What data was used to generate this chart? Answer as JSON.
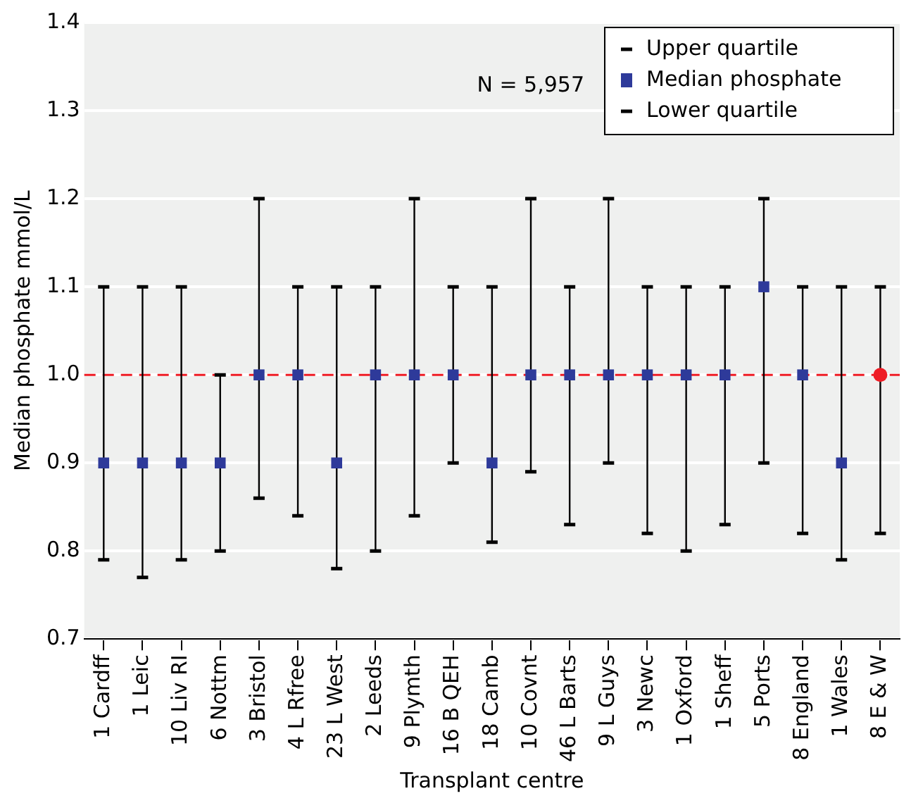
{
  "chart_data": {
    "type": "scatter",
    "xlabel": "Transplant centre",
    "ylabel": "Median phosphate mmol/L",
    "categories": [
      "1 Cardff",
      "1 Leic",
      "10 Liv RI",
      "6 Nottm",
      "3 Bristol",
      "4 L Rfree",
      "23 L West",
      "2 Leeds",
      "9 Plymth",
      "16 B QEH",
      "18 Camb",
      "10 Covnt",
      "46 L Barts",
      "9 L Guys",
      "3 Newc",
      "1 Oxford",
      "1 Sheff",
      "5 Ports",
      "8 England",
      "1 Wales",
      "8 E & W"
    ],
    "series": [
      {
        "name": "Median phosphate",
        "color": "#2e3a9a",
        "marker": "square",
        "values": [
          0.9,
          0.9,
          0.9,
          0.9,
          1.0,
          1.0,
          0.9,
          1.0,
          1.0,
          1.0,
          0.9,
          1.0,
          1.0,
          1.0,
          1.0,
          1.0,
          1.0,
          1.1,
          1.0,
          0.9,
          null
        ],
        "errors": [
          [
            0.79,
            1.1
          ],
          [
            0.77,
            1.1
          ],
          [
            0.79,
            1.1
          ],
          [
            0.8,
            1.0
          ],
          [
            0.86,
            1.2
          ],
          [
            0.84,
            1.1
          ],
          [
            0.78,
            1.1
          ],
          [
            0.8,
            1.1
          ],
          [
            0.84,
            1.2
          ],
          [
            0.9,
            1.1
          ],
          [
            0.81,
            1.1
          ],
          [
            0.89,
            1.2
          ],
          [
            0.83,
            1.1
          ],
          [
            0.9,
            1.2
          ],
          [
            0.82,
            1.1
          ],
          [
            0.8,
            1.1
          ],
          [
            0.83,
            1.1
          ],
          [
            0.9,
            1.2
          ],
          [
            0.82,
            1.1
          ],
          [
            0.79,
            1.1
          ],
          null
        ]
      },
      {
        "color": "#ee1c25",
        "marker": "circle",
        "values": [
          null,
          null,
          null,
          null,
          null,
          null,
          null,
          null,
          null,
          null,
          null,
          null,
          null,
          null,
          null,
          null,
          null,
          null,
          null,
          null,
          1.0
        ],
        "errors": [
          null,
          null,
          null,
          null,
          null,
          null,
          null,
          null,
          null,
          null,
          null,
          null,
          null,
          null,
          null,
          null,
          null,
          null,
          null,
          null,
          [
            0.82,
            1.1
          ]
        ]
      }
    ],
    "ylim": [
      0.7,
      1.4
    ],
    "yticks": [
      0.7,
      0.8,
      0.9,
      {
        "value": 1,
        "label": "1.0"
      },
      1.1,
      1.2,
      1.3,
      1.4
    ],
    "grid": "y",
    "legend": "top right",
    "ref_lines": [
      {
        "axis": "y",
        "value": 1.0,
        "color": "#ee1c25",
        "line_style": "dashed"
      }
    ],
    "annotations": [
      "Upper quartile",
      "Lower quartile",
      "N = 5,957"
    ]
  }
}
